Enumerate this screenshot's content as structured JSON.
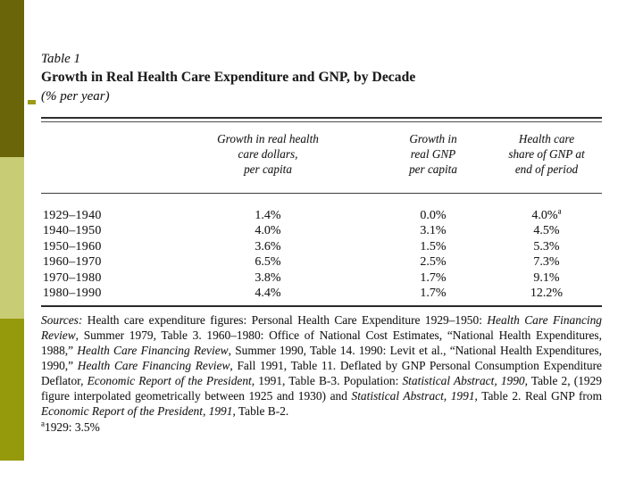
{
  "slide": {
    "background": "#ffffff",
    "accent_bar_colors": {
      "top": "#6a6508",
      "middle": "#c8cc74",
      "bottom": "#95990c"
    },
    "bullet_color": "#9e9a16"
  },
  "table": {
    "number": "Table 1",
    "title": "Growth in Real Health Care Expenditure and GNP, by Decade",
    "subtitle": "(% per year)",
    "columns": [
      {
        "lines": [
          "Growth in real health",
          "care dollars,",
          "per capita"
        ]
      },
      {
        "lines": [
          "Growth in",
          "real GNP",
          "per capita"
        ]
      },
      {
        "lines": [
          "Health care",
          "share of GNP at",
          "end of period"
        ]
      }
    ],
    "rows": [
      {
        "period": "1929–1940",
        "health": "1.4%",
        "gnp": "0.0%",
        "share": "4.0%",
        "share_sup": "a"
      },
      {
        "period": "1940–1950",
        "health": "4.0%",
        "gnp": "3.1%",
        "share": "4.5%"
      },
      {
        "period": "1950–1960",
        "health": "3.6%",
        "gnp": "1.5%",
        "share": "5.3%"
      },
      {
        "period": "1960–1970",
        "health": "6.5%",
        "gnp": "2.5%",
        "share": "7.3%"
      },
      {
        "period": "1970–1980",
        "health": "3.8%",
        "gnp": "1.7%",
        "share": "9.1%"
      },
      {
        "period": "1980–1990",
        "health": "4.4%",
        "gnp": "1.7%",
        "share": "12.2%"
      }
    ]
  },
  "sources": {
    "segments": [
      {
        "text": "Sources:",
        "italic": true
      },
      {
        "text": " Health care expenditure figures: Personal Health Care Expenditure 1929–1950: ",
        "italic": false
      },
      {
        "text": "Health Care Financing Review",
        "italic": true
      },
      {
        "text": ", Summer 1979, Table 3. 1960–1980: Office of National Cost Estimates, “National Health Expenditures, 1988,” ",
        "italic": false
      },
      {
        "text": "Health Care Financing Review",
        "italic": true
      },
      {
        "text": ", Summer 1990, Table 14. 1990: Levit et al., “National Health Expenditures, 1990,” ",
        "italic": false
      },
      {
        "text": "Health Care Financing Review",
        "italic": true
      },
      {
        "text": ", Fall 1991, Table 11. Deflated by GNP Personal Consumption Expenditure Deflator, ",
        "italic": false
      },
      {
        "text": "Economic Report of the President",
        "italic": true
      },
      {
        "text": ", 1991, Table B-3. Population: ",
        "italic": false
      },
      {
        "text": "Statistical Abstract, 1990",
        "italic": true
      },
      {
        "text": ", Table 2, (1929 figure interpolated geometrically between 1925 and 1930) and ",
        "italic": false
      },
      {
        "text": "Statistical Abstract, 1991",
        "italic": true
      },
      {
        "text": ", Table 2. Real GNP from ",
        "italic": false
      },
      {
        "text": "Economic Report of the President, 1991",
        "italic": true
      },
      {
        "text": ", Table B-2.",
        "italic": false
      }
    ]
  },
  "footnote": {
    "marker": "a",
    "text": "1929: 3.5%"
  }
}
